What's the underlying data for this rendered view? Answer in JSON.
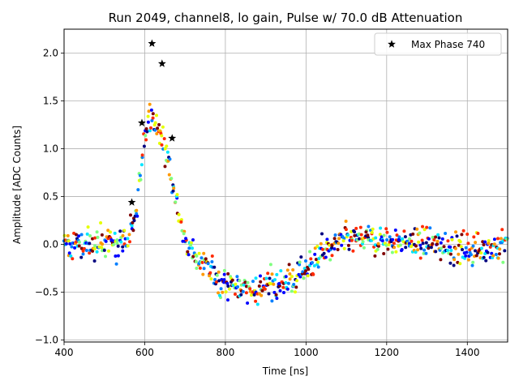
{
  "chart_data": {
    "type": "scatter",
    "title": "Run 2049, channel8, lo gain, Pulse w/ 70.0 dB Attenuation",
    "xlabel": "Time [ns]",
    "ylabel": "Amplitude [ADC Counts]",
    "xlim": [
      400,
      1500
    ],
    "ylim": [
      -1.02,
      2.25
    ],
    "grid": true,
    "x_ticks": [
      400,
      600,
      800,
      1000,
      1200,
      1400
    ],
    "x_tick_labels": [
      "400",
      "600",
      "800",
      "1000",
      "1200",
      "1400"
    ],
    "y_ticks": [
      -1.0,
      -0.5,
      0.0,
      0.5,
      1.0,
      1.5,
      2.0
    ],
    "y_tick_labels": [
      "−1.0",
      "−0.5",
      "0.0",
      "0.5",
      "1.0",
      "1.5",
      "2.0"
    ],
    "legend": {
      "location": "top-right",
      "entries": [
        {
          "label": "Max Phase 740",
          "marker": "star",
          "color": "#000000"
        }
      ]
    },
    "max_phase_series": {
      "name": "Max Phase 740",
      "marker": "star",
      "color": "#000000",
      "x": [
        568,
        593,
        618,
        643,
        668
      ],
      "y": [
        0.44,
        1.27,
        2.1,
        1.89,
        1.11
      ]
    },
    "scatter_series": {
      "description": "Overlaid pulse samples from many phases (colored jet colormap)",
      "colormap": [
        "#00007f",
        "#0000ff",
        "#007fff",
        "#00e5ff",
        "#7fff7f",
        "#e5ff00",
        "#ff9900",
        "#ff2a00",
        "#7f0000"
      ],
      "marker_size": 2,
      "waveform": [
        [
          400,
          0.0
        ],
        [
          560,
          0.0
        ],
        [
          580,
          0.4
        ],
        [
          600,
          1.15
        ],
        [
          615,
          1.35
        ],
        [
          630,
          1.25
        ],
        [
          650,
          1.0
        ],
        [
          670,
          0.6
        ],
        [
          690,
          0.25
        ],
        [
          710,
          -0.05
        ],
        [
          740,
          -0.2
        ],
        [
          780,
          -0.35
        ],
        [
          820,
          -0.45
        ],
        [
          870,
          -0.45
        ],
        [
          920,
          -0.42
        ],
        [
          980,
          -0.35
        ],
        [
          1010,
          -0.2
        ],
        [
          1050,
          -0.05
        ],
        [
          1100,
          0.05
        ],
        [
          1150,
          0.05
        ],
        [
          1200,
          0.05
        ],
        [
          1300,
          0.0
        ],
        [
          1400,
          -0.05
        ],
        [
          1500,
          0.0
        ]
      ],
      "sample_spacing_ns": 3,
      "seed": 2049
    }
  }
}
